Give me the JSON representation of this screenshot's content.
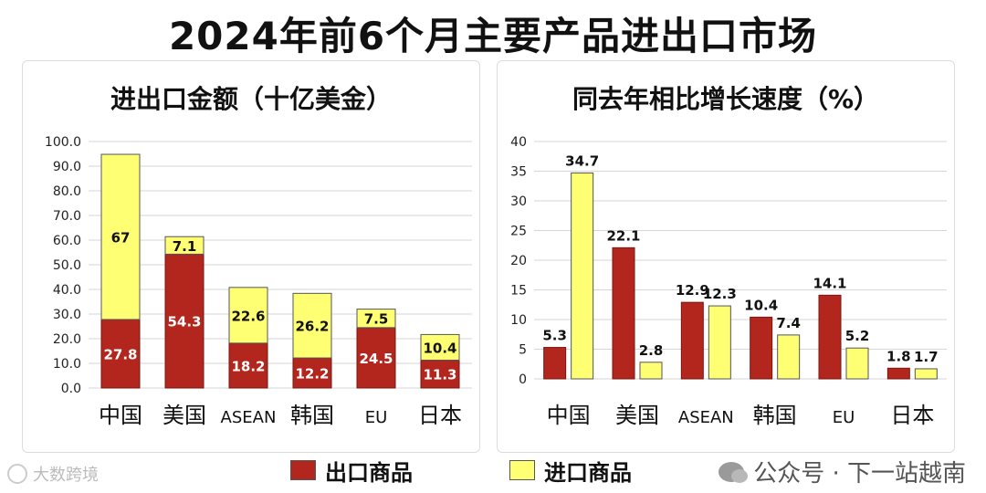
{
  "title": "2024年前6个月主要产品进出口市场",
  "legend": {
    "export": "出口商品",
    "import": "进口商品"
  },
  "colors": {
    "export": "#b3261e",
    "import": "#ffff73",
    "grid": "#d6d6d6"
  },
  "watermark_left": "大数跨境",
  "watermark_right": "公众号 · 下一站越南",
  "chart_data": [
    {
      "type": "bar",
      "stacked": true,
      "title": "进出口金额（十亿美金）",
      "categories": [
        "中国",
        "美国",
        "ASEAN",
        "韩国",
        "EU",
        "日本"
      ],
      "series": [
        {
          "name": "出口商品",
          "values": [
            27.8,
            54.3,
            18.2,
            12.2,
            24.5,
            11.3
          ]
        },
        {
          "name": "进口商品",
          "values": [
            67.0,
            7.1,
            22.6,
            26.2,
            7.5,
            10.4
          ]
        }
      ],
      "ylim": [
        0,
        100
      ],
      "yticks": [
        "0.0",
        "10.0",
        "20.0",
        "30.0",
        "40.0",
        "50.0",
        "60.0",
        "70.0",
        "80.0",
        "90.0",
        "100.0"
      ],
      "grid": true
    },
    {
      "type": "bar",
      "stacked": false,
      "title": "同去年相比增长速度（%）",
      "categories": [
        "中国",
        "美国",
        "ASEAN",
        "韩国",
        "EU",
        "日本"
      ],
      "series": [
        {
          "name": "出口商品",
          "values": [
            5.3,
            22.1,
            12.9,
            10.4,
            14.1,
            1.8
          ]
        },
        {
          "name": "进口商品",
          "values": [
            34.7,
            2.8,
            12.3,
            7.4,
            5.2,
            1.7
          ]
        }
      ],
      "ylim": [
        0,
        40
      ],
      "yticks": [
        "0",
        "5",
        "10",
        "15",
        "20",
        "25",
        "30",
        "35",
        "40"
      ],
      "grid": true
    }
  ]
}
